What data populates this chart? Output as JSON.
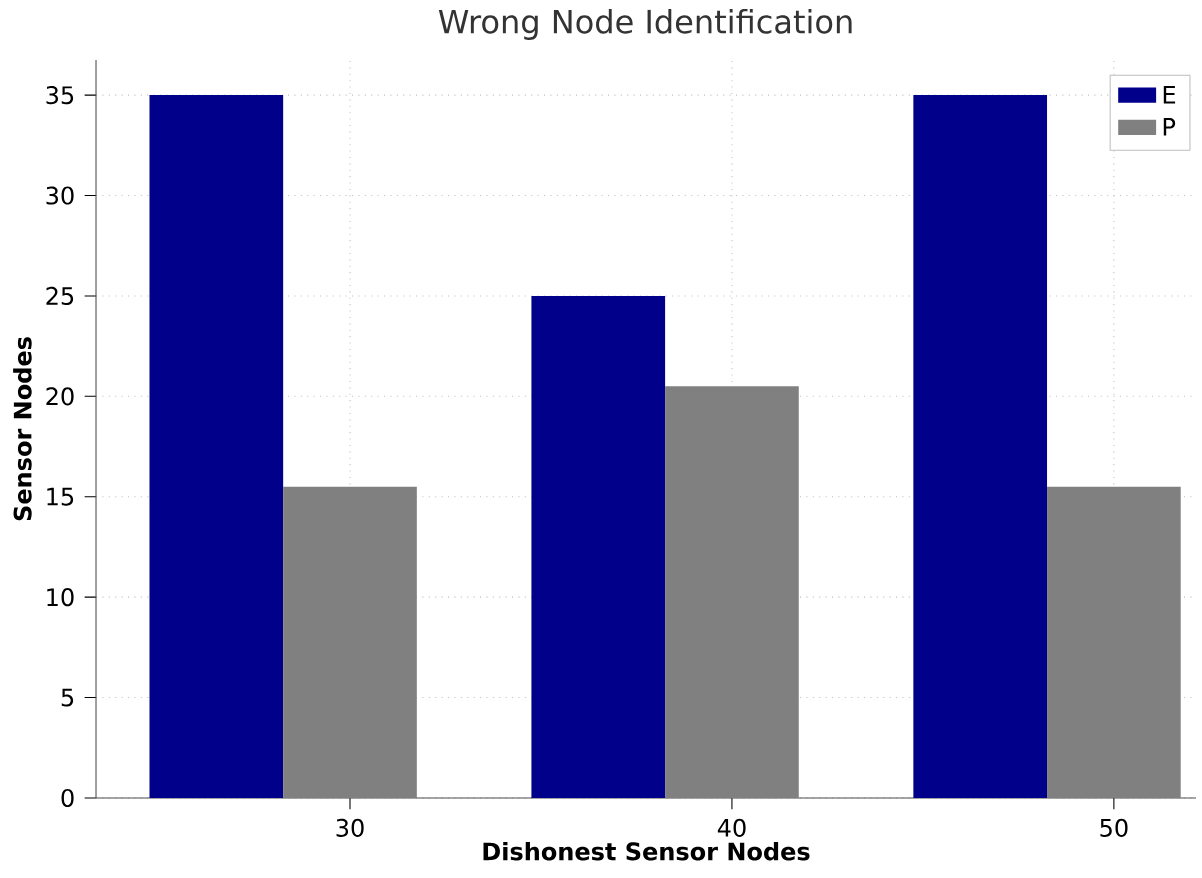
{
  "chart_data": {
    "type": "bar",
    "title": "Wrong Node Identification",
    "xlabel": "Dishonest Sensor Nodes",
    "ylabel": "Sensor Nodes",
    "categories": [
      "30",
      "40",
      "50"
    ],
    "series": [
      {
        "name": "E",
        "color": "#00008b",
        "values": [
          35,
          25,
          35
        ]
      },
      {
        "name": "P",
        "color": "#808080",
        "values": [
          15.5,
          20.5,
          15.5
        ]
      }
    ],
    "ylim": [
      0,
      36.75
    ],
    "yticks": [
      0,
      5,
      10,
      15,
      20,
      25,
      30,
      35
    ],
    "grid": true,
    "legend": "top right"
  }
}
